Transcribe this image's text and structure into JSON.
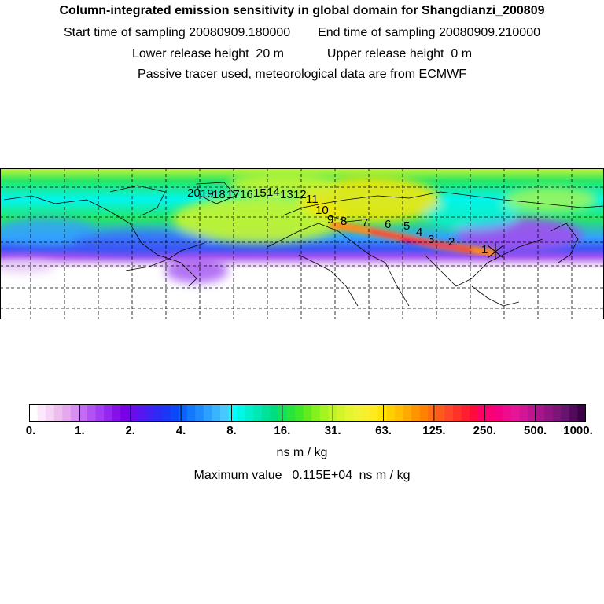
{
  "header": {
    "title": "Column-integrated emission sensitivity in global domain for Shangdianzi_200809",
    "start_label": "Start time of sampling",
    "start_value": "20080909.180000",
    "end_label": "End time of sampling",
    "end_value": "20080909.210000",
    "lower_label": "Lower release height",
    "lower_value": "20 m",
    "upper_label": "Upper release height",
    "upper_value": "0 m",
    "note": "Passive tracer used, meteorological data are from ECMWF"
  },
  "map": {
    "trajectory_labels": [
      "1",
      "2",
      "3",
      "4",
      "5",
      "6",
      "7",
      "8",
      "9",
      "10",
      "11",
      "12",
      "13",
      "14",
      "15",
      "16",
      "17",
      "18",
      "19",
      "20"
    ],
    "colors": {
      "white": "#ffffff",
      "light_violet": "#e6c8f5",
      "violet": "#a050f0",
      "blue": "#3c55f5",
      "light_blue": "#32a0ff",
      "cyan": "#00f5f0",
      "green": "#28e664",
      "yellow_green": "#c8f532",
      "yellow": "#ffe600",
      "orange": "#ff8c1e",
      "red": "#f5143c",
      "magenta": "#e6007a"
    }
  },
  "colorbar": {
    "ticks": [
      "0.",
      "1.",
      "2.",
      "4.",
      "8.",
      "16.",
      "31.",
      "63.",
      "125.",
      "250.",
      "500.",
      "1000."
    ],
    "colors": [
      "#ffffff",
      "#fbe9fb",
      "#f5d4f5",
      "#eebfee",
      "#e6a8ec",
      "#d88ef0",
      "#c46af4",
      "#b352f4",
      "#a33cf2",
      "#9426ef",
      "#8610ea",
      "#7a00e8",
      "#6a0cec",
      "#5516ef",
      "#4020f2",
      "#2c2af4",
      "#1a36f6",
      "#0b48f8",
      "#0a64fb",
      "#1278fd",
      "#1e8cff",
      "#2ca0ff",
      "#3ab4ff",
      "#48c8ff",
      "#00ffff",
      "#00f8e6",
      "#00f0cc",
      "#00e8b3",
      "#00e29a",
      "#00dc80",
      "#14e05a",
      "#28e43c",
      "#40e82a",
      "#62ec1f",
      "#84f01c",
      "#a4f420",
      "#bef524",
      "#d2f52a",
      "#e2f530",
      "#eef334",
      "#f8ef2c",
      "#ffea1e",
      "#ffe400",
      "#ffd000",
      "#ffbe00",
      "#ffaa00",
      "#ff9600",
      "#ff8200",
      "#ff6e14",
      "#ff5a1e",
      "#ff4628",
      "#ff3228",
      "#ff1e30",
      "#ff0a3c",
      "#ff0064",
      "#fa0073",
      "#f50082",
      "#f00a8c",
      "#e61496",
      "#d21496",
      "#be1490",
      "#a8148a",
      "#921482",
      "#7c147a",
      "#661470",
      "#520a5a",
      "#3c0046"
    ],
    "unit": "ns m / kg"
  },
  "max_value": {
    "label": "Maximum value",
    "value": "0.115E+04",
    "unit": "ns m / kg"
  }
}
